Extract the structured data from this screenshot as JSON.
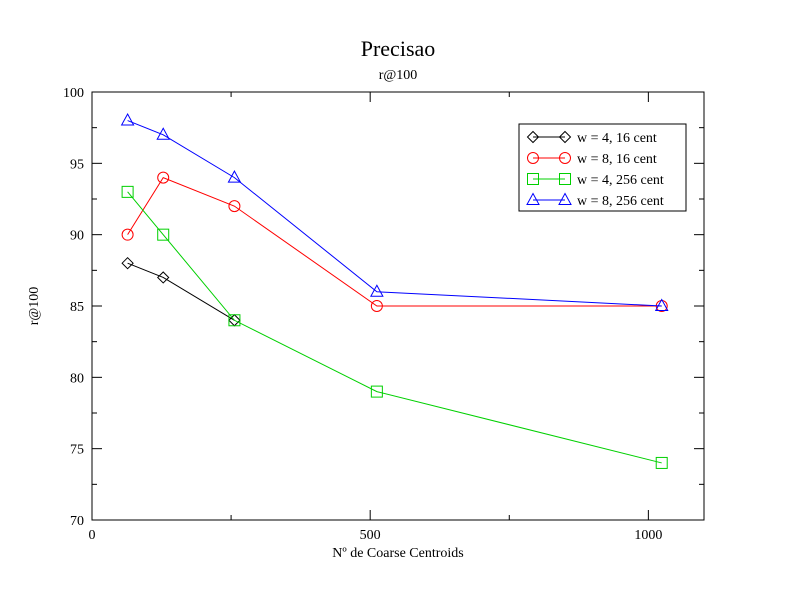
{
  "chart_data": {
    "type": "line",
    "title": "Precisao",
    "subtitle": "r@100",
    "xlabel": "Nº de Coarse Centroids",
    "ylabel": "r@100",
    "xlim": [
      0,
      1100
    ],
    "ylim": [
      70,
      100
    ],
    "x_ticks": [
      0,
      500,
      1000
    ],
    "y_ticks": [
      70,
      75,
      80,
      85,
      90,
      95,
      100
    ],
    "legend_position": "top-right",
    "series": [
      {
        "name": "w = 4, 16 cent",
        "color": "#000000",
        "marker": "diamond",
        "x": [
          64,
          128,
          256
        ],
        "y": [
          88,
          87,
          84
        ]
      },
      {
        "name": "w = 8, 16 cent",
        "color": "#ff0000",
        "marker": "circle",
        "x": [
          64,
          128,
          256,
          512,
          1024
        ],
        "y": [
          90,
          94,
          92,
          85,
          85
        ]
      },
      {
        "name": "w = 4, 256 cent",
        "color": "#00d000",
        "marker": "square",
        "x": [
          64,
          128,
          256,
          512,
          1024
        ],
        "y": [
          93,
          90,
          84,
          79,
          74
        ]
      },
      {
        "name": "w = 8, 256 cent",
        "color": "#0000ff",
        "marker": "triangle",
        "x": [
          64,
          128,
          256,
          512,
          1024
        ],
        "y": [
          98,
          97,
          94,
          86,
          85
        ]
      }
    ]
  }
}
